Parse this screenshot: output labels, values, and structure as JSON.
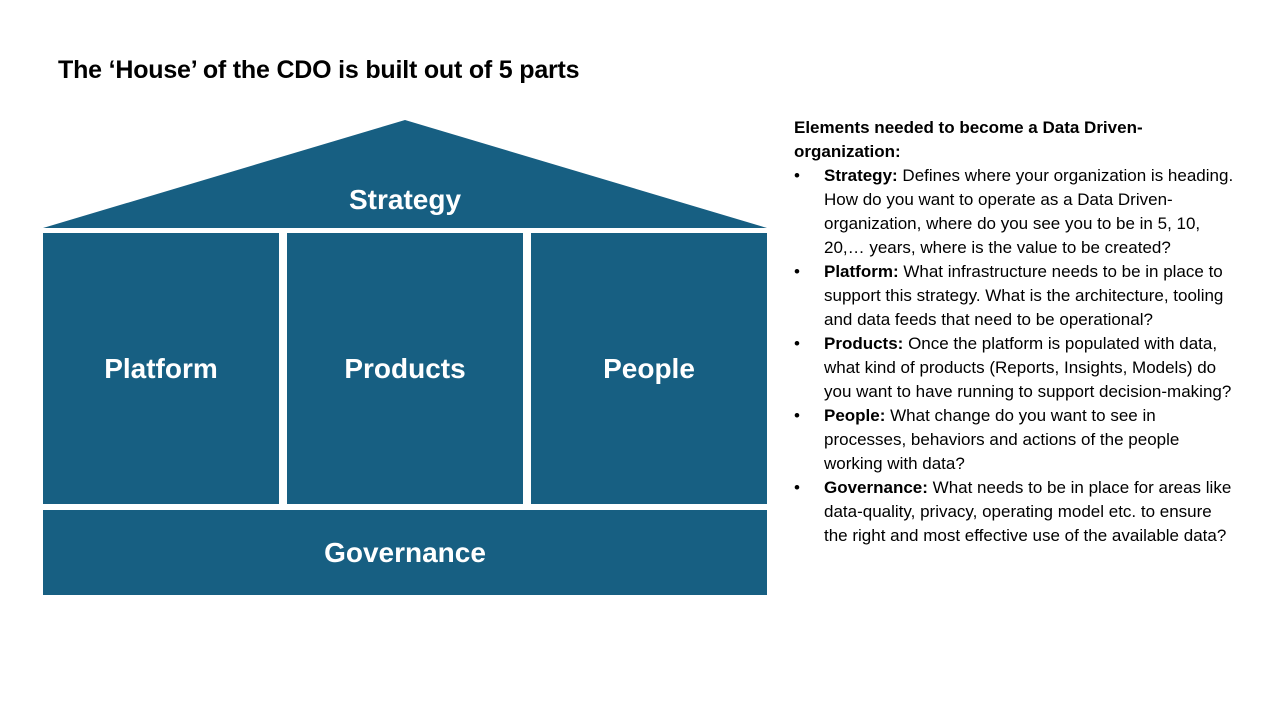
{
  "title": "The ‘House’ of the CDO is built out of 5 parts",
  "colors": {
    "block": "#175f82",
    "block_text": "#ffffff",
    "background": "#ffffff"
  },
  "house": {
    "roof": "Strategy",
    "pillars": [
      "Platform",
      "Products",
      "People"
    ],
    "foundation": "Governance"
  },
  "panel": {
    "heading": "Elements needed to become a Data Driven-organization:",
    "bullet_glyph": "•",
    "items": [
      {
        "term": "Strategy:",
        "text": " Defines where your organization is heading. How do you want to operate as a Data Driven-organization, where do you see you to be in 5, 10, 20,… years, where is the value to be created?"
      },
      {
        "term": "Platform:",
        "text": " What infrastructure needs to be in place to support this strategy. What is the architecture, tooling and data feeds that need to be operational?"
      },
      {
        "term": "Products:",
        "text": " Once the platform is populated with data, what kind of products (Reports, Insights, Models) do you want to have running to support decision-making?"
      },
      {
        "term": "People:",
        "text": " What change do you want to see in processes, behaviors and actions of the people working with data?"
      },
      {
        "term": "Governance:",
        "text": " What needs to be in place for areas like data-quality, privacy, operating model etc. to ensure the right and most effective use of the available data?"
      }
    ]
  }
}
